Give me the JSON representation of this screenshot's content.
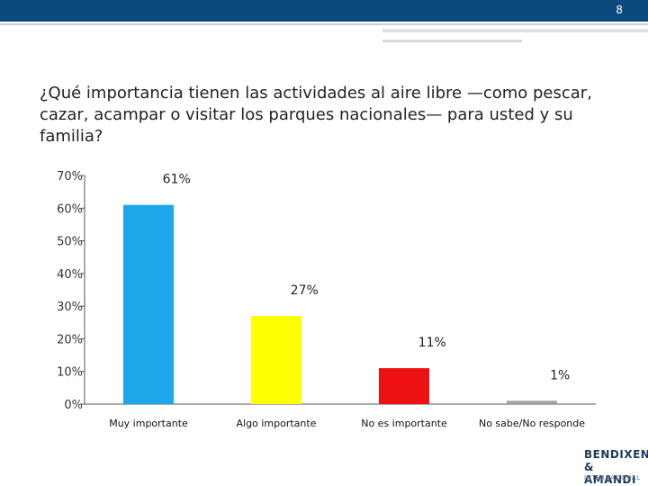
{
  "slide": {
    "page_number": "8",
    "accent_color": "#0b4a7e",
    "question": "¿Qué importancia tienen las actividades al aire libre —como pescar, cazar, acampar o visitar los parques nacionales— para usted y su familia?"
  },
  "logo": {
    "line1": "BENDIXEN",
    "line2": "& AMANDI",
    "line3": "INTERNATIONAL"
  },
  "chart_data": {
    "type": "bar",
    "categories": [
      "Muy importante",
      "Algo importante",
      "No es importante",
      "No sabe/No responde"
    ],
    "values": [
      61,
      27,
      11,
      1
    ],
    "value_labels": [
      "61%",
      "27%",
      "11%",
      "1%"
    ],
    "colors": [
      "#1ea8ec",
      "#ffff00",
      "#ee1111",
      "#a0a0a0"
    ],
    "ylim": [
      0,
      70
    ],
    "yticks": [
      0,
      10,
      20,
      30,
      40,
      50,
      60,
      70
    ],
    "ytick_labels": [
      "0%",
      "10%",
      "20%",
      "30%",
      "40%",
      "50%",
      "60%",
      "70%"
    ],
    "grid": false,
    "legend": "none"
  }
}
